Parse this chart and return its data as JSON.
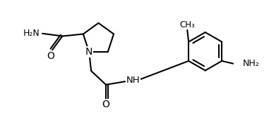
{
  "bg_color": "#ffffff",
  "line_color": "#000000",
  "bond_width": 1.5,
  "font_size": 9,
  "figsize": [
    3.81,
    1.64
  ],
  "dpi": 100,
  "xlim": [
    0,
    10
  ],
  "ylim": [
    0,
    4.3
  ]
}
